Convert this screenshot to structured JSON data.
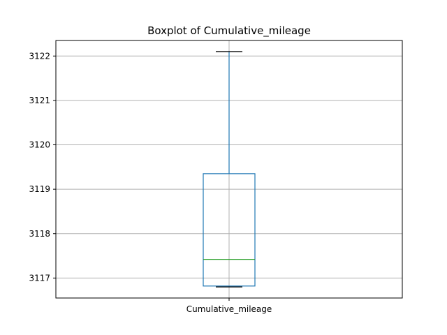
{
  "chart_data": {
    "type": "box",
    "title": "Boxplot of Cumulative_mileage",
    "xlabel": "",
    "ylabel": "",
    "categories": [
      "Cumulative_mileage"
    ],
    "boxes": [
      {
        "name": "Cumulative_mileage",
        "whisker_low": 3116.8,
        "q1": 3116.82,
        "median": 3117.42,
        "q3": 3119.35,
        "whisker_high": 3122.1
      }
    ],
    "ylim": [
      3116.55,
      3122.35
    ],
    "yticks": [
      3117,
      3118,
      3119,
      3120,
      3121,
      3122
    ],
    "grid": true,
    "colors": {
      "box": "#1f77b4",
      "median": "#2ca02c",
      "cap": "#000000",
      "grid": "#b0b0b0",
      "axes": "#000000"
    }
  }
}
